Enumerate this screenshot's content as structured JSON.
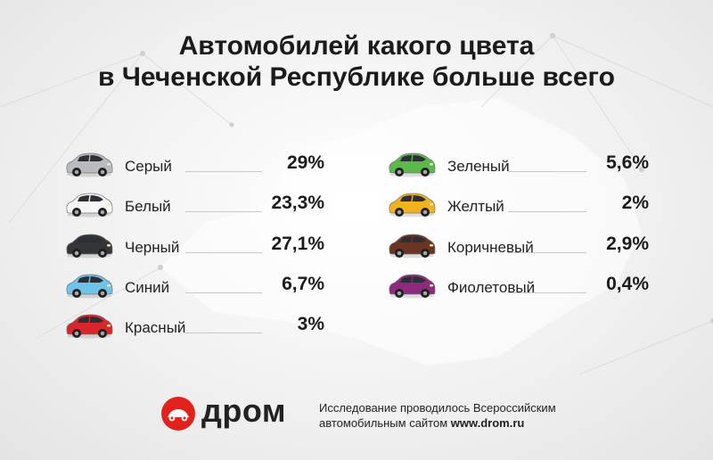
{
  "title_line1": "Автомобилей какого цвета",
  "title_line2": "в Чеченской Республике больше всего",
  "chart_data": {
    "type": "table",
    "title": "Автомобилей какого цвета в Чеченской Республике больше всего",
    "unit": "%",
    "columns": [
      {
        "rows": [
          {
            "label": "Серый",
            "value": 29,
            "display": "29%",
            "color": "#b8bcc0"
          },
          {
            "label": "Белый",
            "value": 23.3,
            "display": "23,3%",
            "color": "#f7f7f7"
          },
          {
            "label": "Черный",
            "value": 27.1,
            "display": "27,1%",
            "color": "#333538"
          },
          {
            "label": "Синий",
            "value": 6.7,
            "display": "6,7%",
            "color": "#6ec3e8"
          },
          {
            "label": "Красный",
            "value": 3,
            "display": "3%",
            "color": "#d9262d"
          }
        ]
      },
      {
        "rows": [
          {
            "label": "Зеленый",
            "value": 5.6,
            "display": "5,6%",
            "color": "#5bb84a"
          },
          {
            "label": "Желтый",
            "value": 2,
            "display": "2%",
            "color": "#f0b21f"
          },
          {
            "label": "Коричневый",
            "value": 2.9,
            "display": "2,9%",
            "color": "#6b3422"
          },
          {
            "label": "Фиолетовый",
            "value": 0.4,
            "display": "0,4%",
            "color": "#8e2a7e"
          }
        ]
      }
    ]
  },
  "footer": {
    "logo_text": "дром",
    "logo_color": "#e1221c",
    "note_line1": "Исследование проводилось Всероссийским",
    "note_line2_prefix": "автомобильным сайтом ",
    "note_line2_link": "www.drom.ru"
  }
}
